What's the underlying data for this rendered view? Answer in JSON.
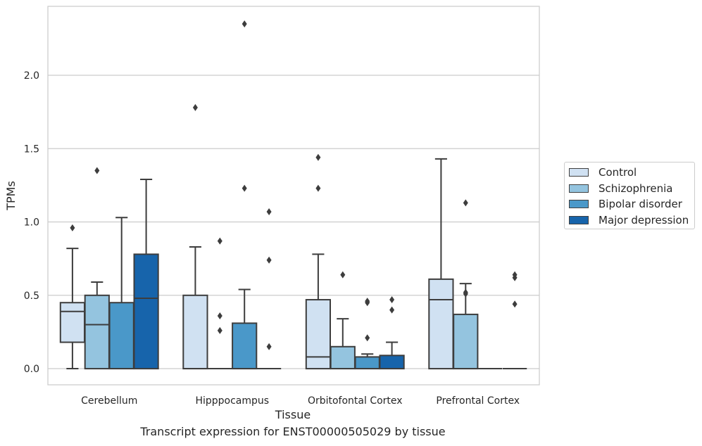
{
  "chart_data": {
    "type": "box",
    "caption": "Transcript expression for ENST00000505029 by tissue",
    "xlabel": "Tissue",
    "ylabel": "TPMs",
    "ylim": [
      -0.11,
      2.47
    ],
    "yticks": [
      "0.0",
      "0.5",
      "1.0",
      "1.5",
      "2.0"
    ],
    "categories": [
      "Cerebellum",
      "Hipppocampus",
      "Orbitofontal Cortex",
      "Prefrontal Cortex"
    ],
    "grid": true,
    "legend_position": "right",
    "series": [
      {
        "name": "Control",
        "color": "#d0e1f2",
        "boxes": [
          {
            "q1": 0.18,
            "median": 0.39,
            "q3": 0.45,
            "whislo": 0.0,
            "whishi": 0.82,
            "fliers": [
              0.96
            ]
          },
          {
            "q1": 0.0,
            "median": 0.0,
            "q3": 0.5,
            "whislo": 0.0,
            "whishi": 0.83,
            "fliers": [
              1.78
            ]
          },
          {
            "q1": 0.0,
            "median": 0.08,
            "q3": 0.47,
            "whislo": 0.0,
            "whishi": 0.78,
            "fliers": [
              1.23,
              1.44
            ]
          },
          {
            "q1": 0.0,
            "median": 0.47,
            "q3": 0.61,
            "whislo": 0.0,
            "whishi": 1.43,
            "fliers": []
          }
        ]
      },
      {
        "name": "Schizophrenia",
        "color": "#94c4df",
        "boxes": [
          {
            "q1": 0.0,
            "median": 0.3,
            "q3": 0.5,
            "whislo": 0.0,
            "whishi": 0.59,
            "fliers": [
              1.35
            ]
          },
          {
            "q1": 0.0,
            "median": 0.0,
            "q3": 0.0,
            "whislo": 0.0,
            "whishi": 0.0,
            "fliers": [
              0.26,
              0.36,
              0.87
            ]
          },
          {
            "q1": 0.0,
            "median": 0.0,
            "q3": 0.15,
            "whislo": 0.0,
            "whishi": 0.34,
            "fliers": [
              0.64
            ]
          },
          {
            "q1": 0.0,
            "median": 0.0,
            "q3": 0.37,
            "whislo": 0.0,
            "whishi": 0.58,
            "fliers": [
              0.51,
              0.52,
              1.13
            ]
          }
        ]
      },
      {
        "name": "Bipolar disorder",
        "color": "#4a98c9",
        "boxes": [
          {
            "q1": 0.0,
            "median": 0.0,
            "q3": 0.45,
            "whislo": 0.0,
            "whishi": 1.03,
            "fliers": []
          },
          {
            "q1": 0.0,
            "median": 0.0,
            "q3": 0.31,
            "whislo": 0.0,
            "whishi": 0.54,
            "fliers": [
              1.23,
              2.35
            ]
          },
          {
            "q1": 0.0,
            "median": 0.0,
            "q3": 0.08,
            "whislo": 0.0,
            "whishi": 0.1,
            "fliers": [
              0.21,
              0.45,
              0.46
            ]
          },
          {
            "q1": 0.0,
            "median": 0.0,
            "q3": 0.0,
            "whislo": 0.0,
            "whishi": 0.0,
            "fliers": []
          }
        ]
      },
      {
        "name": "Major depression",
        "color": "#1764ab",
        "boxes": [
          {
            "q1": 0.0,
            "median": 0.48,
            "q3": 0.78,
            "whislo": 0.0,
            "whishi": 1.29,
            "fliers": []
          },
          {
            "q1": 0.0,
            "median": 0.0,
            "q3": 0.0,
            "whislo": 0.0,
            "whishi": 0.0,
            "fliers": [
              0.15,
              0.74,
              1.07
            ]
          },
          {
            "q1": 0.0,
            "median": 0.0,
            "q3": 0.09,
            "whislo": 0.0,
            "whishi": 0.18,
            "fliers": [
              0.4,
              0.47
            ]
          },
          {
            "q1": 0.0,
            "median": 0.0,
            "q3": 0.0,
            "whislo": 0.0,
            "whishi": 0.0,
            "fliers": [
              0.44,
              0.62,
              0.64
            ]
          }
        ]
      }
    ]
  }
}
